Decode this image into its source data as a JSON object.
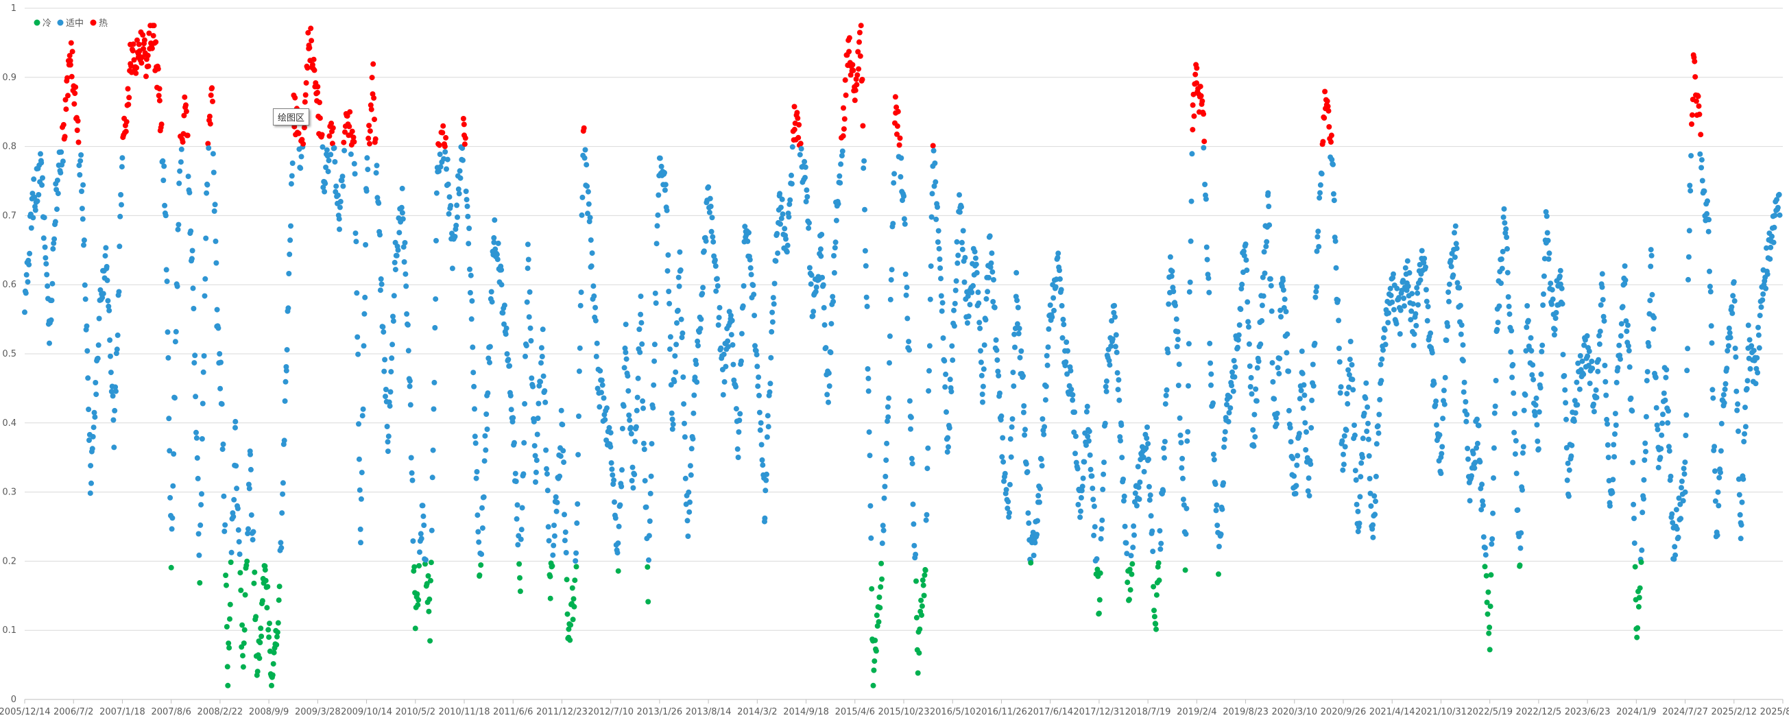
{
  "chart_data": {
    "type": "scatter",
    "title": "",
    "xlabel": "",
    "ylabel": "",
    "ylim": [
      0,
      1
    ],
    "xlim": [
      "2005-12-14",
      "2025-08-31"
    ],
    "grid": true,
    "legend_position": "top-left",
    "y_ticks": [
      "0",
      "0.1",
      "0.2",
      "0.3",
      "0.4",
      "0.5",
      "0.6",
      "0.7",
      "0.8",
      "0.9",
      "1"
    ],
    "x_ticks": [
      "2005/12/14",
      "2006/7/2",
      "2007/1/18",
      "2007/8/6",
      "2008/2/22",
      "2008/9/9",
      "2009/3/28",
      "2009/10/14",
      "2010/5/2",
      "2010/11/18",
      "2011/6/6",
      "2011/12/23",
      "2012/7/10",
      "2013/1/26",
      "2013/8/14",
      "2014/3/2",
      "2014/9/18",
      "2015/4/6",
      "2015/10/23",
      "2016/5/10",
      "2016/11/26",
      "2017/6/14",
      "2017/12/31",
      "2018/7/19",
      "2019/2/4",
      "2019/8/23",
      "2020/3/10",
      "2020/9/26",
      "2021/4/14",
      "2021/10/31",
      "2022/5/19",
      "2022/12/5",
      "2023/6/23",
      "2024/1/9",
      "2024/7/27",
      "2025/2/12",
      "2025/8/31"
    ],
    "thresholds": {
      "cold_below": 0.2,
      "hot_above": 0.8
    },
    "series": [
      {
        "name": "冷",
        "color": "#00b050"
      },
      {
        "name": "适中",
        "color": "#2e95d3"
      },
      {
        "name": "热",
        "color": "#ff0000"
      }
    ],
    "segments": [
      [
        "2005-12-14",
        0.57
      ],
      [
        "2006-01-15",
        0.72
      ],
      [
        "2006-02-20",
        0.77
      ],
      [
        "2006-03-25",
        0.52
      ],
      [
        "2006-04-20",
        0.72
      ],
      [
        "2006-05-25",
        0.82
      ],
      [
        "2006-06-20",
        0.94
      ],
      [
        "2006-07-15",
        0.84
      ],
      [
        "2006-08-10",
        0.72
      ],
      [
        "2006-09-10",
        0.31
      ],
      [
        "2006-10-15",
        0.55
      ],
      [
        "2006-11-15",
        0.65
      ],
      [
        "2006-12-15",
        0.37
      ],
      [
        "2007-01-18",
        0.78
      ],
      [
        "2007-02-20",
        0.92
      ],
      [
        "2007-03-25",
        0.94
      ],
      [
        "2007-04-25",
        0.93
      ],
      [
        "2007-05-25",
        0.97
      ],
      [
        "2007-06-20",
        0.86
      ],
      [
        "2007-07-15",
        0.7
      ],
      [
        "2007-08-06",
        0.2
      ],
      [
        "2007-09-10",
        0.78
      ],
      [
        "2007-10-05",
        0.86
      ],
      [
        "2007-11-01",
        0.62
      ],
      [
        "2007-12-01",
        0.18
      ],
      [
        "2008-01-01",
        0.77
      ],
      [
        "2008-01-20",
        0.89
      ],
      [
        "2008-02-10",
        0.55
      ],
      [
        "2008-03-01",
        0.43
      ],
      [
        "2008-03-25",
        0.04
      ],
      [
        "2008-04-25",
        0.38
      ],
      [
        "2008-05-25",
        0.05
      ],
      [
        "2008-06-25",
        0.34
      ],
      [
        "2008-07-25",
        0.04
      ],
      [
        "2008-08-25",
        0.2
      ],
      [
        "2008-09-20",
        0.03
      ],
      [
        "2008-10-20",
        0.14
      ],
      [
        "2008-11-20",
        0.47
      ],
      [
        "2008-12-20",
        0.86
      ],
      [
        "2009-01-20",
        0.78
      ],
      [
        "2009-02-20",
        0.96
      ],
      [
        "2009-03-28",
        0.87
      ],
      [
        "2009-04-25",
        0.74
      ],
      [
        "2009-05-25",
        0.82
      ],
      [
        "2009-06-25",
        0.7
      ],
      [
        "2009-07-25",
        0.84
      ],
      [
        "2009-08-25",
        0.8
      ],
      [
        "2009-09-20",
        0.23
      ],
      [
        "2009-10-14",
        0.75
      ],
      [
        "2009-11-10",
        0.9
      ],
      [
        "2009-12-10",
        0.62
      ],
      [
        "2010-01-10",
        0.38
      ],
      [
        "2010-02-10",
        0.65
      ],
      [
        "2010-03-10",
        0.72
      ],
      [
        "2010-04-10",
        0.46
      ],
      [
        "2010-05-02",
        0.1
      ],
      [
        "2010-06-01",
        0.27
      ],
      [
        "2010-07-01",
        0.11
      ],
      [
        "2010-08-01",
        0.78
      ],
      [
        "2010-09-01",
        0.81
      ],
      [
        "2010-10-01",
        0.65
      ],
      [
        "2010-11-18",
        0.83
      ],
      [
        "2010-12-20",
        0.55
      ],
      [
        "2011-01-20",
        0.18
      ],
      [
        "2011-02-20",
        0.42
      ],
      [
        "2011-03-20",
        0.67
      ],
      [
        "2011-04-20",
        0.6
      ],
      [
        "2011-06-06",
        0.4
      ],
      [
        "2011-07-06",
        0.17
      ],
      [
        "2011-08-06",
        0.63
      ],
      [
        "2011-09-06",
        0.34
      ],
      [
        "2011-10-06",
        0.52
      ],
      [
        "2011-11-06",
        0.16
      ],
      [
        "2011-12-23",
        0.4
      ],
      [
        "2012-01-20",
        0.08
      ],
      [
        "2012-02-20",
        0.19
      ],
      [
        "2012-03-20",
        0.81
      ],
      [
        "2012-04-20",
        0.65
      ],
      [
        "2012-05-20",
        0.46
      ],
      [
        "2012-07-10",
        0.37
      ],
      [
        "2012-08-10",
        0.2
      ],
      [
        "2012-09-10",
        0.52
      ],
      [
        "2012-10-10",
        0.3
      ],
      [
        "2012-11-10",
        0.56
      ],
      [
        "2012-12-10",
        0.16
      ],
      [
        "2013-01-26",
        0.8
      ],
      [
        "2013-02-20",
        0.74
      ],
      [
        "2013-03-20",
        0.4
      ],
      [
        "2013-04-20",
        0.64
      ],
      [
        "2013-05-20",
        0.24
      ],
      [
        "2013-06-20",
        0.45
      ],
      [
        "2013-08-14",
        0.73
      ],
      [
        "2013-09-14",
        0.62
      ],
      [
        "2013-10-14",
        0.47
      ],
      [
        "2013-11-14",
        0.55
      ],
      [
        "2013-12-14",
        0.36
      ],
      [
        "2014-01-14",
        0.7
      ],
      [
        "2014-03-02",
        0.5
      ],
      [
        "2014-04-02",
        0.28
      ],
      [
        "2014-05-02",
        0.55
      ],
      [
        "2014-06-02",
        0.72
      ],
      [
        "2014-07-02",
        0.65
      ],
      [
        "2014-08-02",
        0.84
      ],
      [
        "2014-09-18",
        0.75
      ],
      [
        "2014-10-18",
        0.55
      ],
      [
        "2014-11-18",
        0.67
      ],
      [
        "2014-12-18",
        0.43
      ],
      [
        "2015-01-18",
        0.69
      ],
      [
        "2015-02-18",
        0.83
      ],
      [
        "2015-03-10",
        0.95
      ],
      [
        "2015-04-06",
        0.88
      ],
      [
        "2015-05-01",
        0.96
      ],
      [
        "2015-06-01",
        0.44
      ],
      [
        "2015-06-20",
        0.03
      ],
      [
        "2015-07-20",
        0.16
      ],
      [
        "2015-08-20",
        0.42
      ],
      [
        "2015-09-20",
        0.87
      ],
      [
        "2015-10-23",
        0.72
      ],
      [
        "2015-11-20",
        0.42
      ],
      [
        "2015-12-20",
        0.06
      ],
      [
        "2016-01-20",
        0.2
      ],
      [
        "2016-02-20",
        0.79
      ],
      [
        "2016-03-20",
        0.63
      ],
      [
        "2016-04-20",
        0.37
      ],
      [
        "2016-05-10",
        0.51
      ],
      [
        "2016-06-10",
        0.73
      ],
      [
        "2016-07-10",
        0.55
      ],
      [
        "2016-08-10",
        0.64
      ],
      [
        "2016-09-10",
        0.46
      ],
      [
        "2016-10-10",
        0.67
      ],
      [
        "2016-11-26",
        0.38
      ],
      [
        "2016-12-26",
        0.27
      ],
      [
        "2017-01-26",
        0.59
      ],
      [
        "2017-02-26",
        0.42
      ],
      [
        "2017-03-26",
        0.2
      ],
      [
        "2017-04-26",
        0.28
      ],
      [
        "2017-06-14",
        0.55
      ],
      [
        "2017-07-14",
        0.63
      ],
      [
        "2017-08-14",
        0.5
      ],
      [
        "2017-09-14",
        0.43
      ],
      [
        "2017-10-14",
        0.27
      ],
      [
        "2017-11-14",
        0.41
      ],
      [
        "2017-12-31",
        0.14
      ],
      [
        "2018-01-31",
        0.47
      ],
      [
        "2018-03-01",
        0.56
      ],
      [
        "2018-04-01",
        0.37
      ],
      [
        "2018-05-01",
        0.14
      ],
      [
        "2018-06-01",
        0.3
      ],
      [
        "2018-07-19",
        0.37
      ],
      [
        "2018-08-19",
        0.1
      ],
      [
        "2018-09-19",
        0.31
      ],
      [
        "2018-10-19",
        0.64
      ],
      [
        "2018-11-19",
        0.51
      ],
      [
        "2018-12-19",
        0.2
      ],
      [
        "2019-01-19",
        0.85
      ],
      [
        "2019-02-04",
        0.9
      ],
      [
        "2019-03-04",
        0.82
      ],
      [
        "2019-04-04",
        0.47
      ],
      [
        "2019-05-04",
        0.19
      ],
      [
        "2019-06-04",
        0.4
      ],
      [
        "2019-07-04",
        0.46
      ],
      [
        "2019-08-23",
        0.67
      ],
      [
        "2019-09-23",
        0.36
      ],
      [
        "2019-10-23",
        0.54
      ],
      [
        "2019-11-23",
        0.72
      ],
      [
        "2019-12-23",
        0.37
      ],
      [
        "2020-01-23",
        0.63
      ],
      [
        "2020-03-10",
        0.28
      ],
      [
        "2020-04-10",
        0.48
      ],
      [
        "2020-05-10",
        0.3
      ],
      [
        "2020-06-10",
        0.62
      ],
      [
        "2020-07-10",
        0.87
      ],
      [
        "2020-08-10",
        0.8
      ],
      [
        "2020-09-26",
        0.33
      ],
      [
        "2020-10-26",
        0.51
      ],
      [
        "2020-11-26",
        0.25
      ],
      [
        "2020-12-26",
        0.45
      ],
      [
        "2021-01-26",
        0.23
      ],
      [
        "2021-02-26",
        0.48
      ],
      [
        "2021-04-14",
        0.6
      ],
      [
        "2021-05-14",
        0.55
      ],
      [
        "2021-06-14",
        0.62
      ],
      [
        "2021-07-14",
        0.53
      ],
      [
        "2021-08-14",
        0.66
      ],
      [
        "2021-10-31",
        0.33
      ],
      [
        "2021-11-30",
        0.58
      ],
      [
        "2021-12-30",
        0.67
      ],
      [
        "2022-01-30",
        0.48
      ],
      [
        "2022-02-28",
        0.3
      ],
      [
        "2022-03-30",
        0.4
      ],
      [
        "2022-04-30",
        0.2
      ],
      [
        "2022-05-19",
        0.1
      ],
      [
        "2022-06-19",
        0.56
      ],
      [
        "2022-07-19",
        0.7
      ],
      [
        "2022-08-19",
        0.48
      ],
      [
        "2022-09-19",
        0.2
      ],
      [
        "2022-10-19",
        0.55
      ],
      [
        "2022-12-05",
        0.38
      ],
      [
        "2023-01-05",
        0.69
      ],
      [
        "2023-02-05",
        0.55
      ],
      [
        "2023-03-05",
        0.62
      ],
      [
        "2023-04-05",
        0.31
      ],
      [
        "2023-05-05",
        0.44
      ],
      [
        "2023-06-23",
        0.52
      ],
      [
        "2023-07-23",
        0.42
      ],
      [
        "2023-08-23",
        0.6
      ],
      [
        "2023-09-23",
        0.26
      ],
      [
        "2023-10-23",
        0.46
      ],
      [
        "2023-11-23",
        0.61
      ],
      [
        "2023-12-23",
        0.4
      ],
      [
        "2024-01-09",
        0.08
      ],
      [
        "2024-02-09",
        0.29
      ],
      [
        "2024-03-09",
        0.64
      ],
      [
        "2024-04-09",
        0.35
      ],
      [
        "2024-05-09",
        0.47
      ],
      [
        "2024-06-09",
        0.22
      ],
      [
        "2024-07-27",
        0.32
      ],
      [
        "2024-08-15",
        0.72
      ],
      [
        "2024-09-01",
        0.94
      ],
      [
        "2024-10-01",
        0.78
      ],
      [
        "2024-11-01",
        0.67
      ],
      [
        "2024-12-01",
        0.23
      ],
      [
        "2025-01-01",
        0.45
      ],
      [
        "2025-02-12",
        0.6
      ],
      [
        "2025-03-12",
        0.24
      ],
      [
        "2025-04-12",
        0.52
      ],
      [
        "2025-05-12",
        0.47
      ],
      [
        "2025-06-12",
        0.6
      ],
      [
        "2025-07-12",
        0.67
      ],
      [
        "2025-08-20",
        0.71
      ]
    ]
  },
  "ui": {
    "tooltip": "绘图区"
  }
}
